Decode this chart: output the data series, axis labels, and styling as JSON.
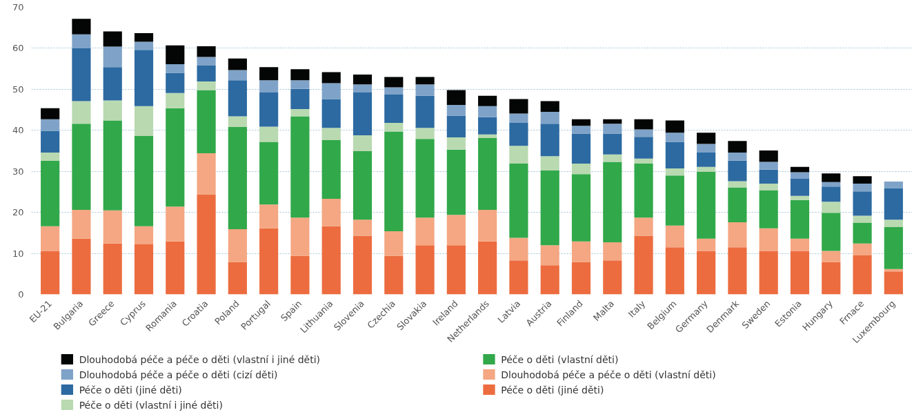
{
  "chart_data": {
    "type": "bar",
    "stacked": true,
    "categories": [
      "EU-21",
      "Bulgaria",
      "Greece",
      "Cyprus",
      "Romania",
      "Croatia",
      "Poland",
      "Portugal",
      "Spain",
      "Lithuania",
      "Slovenia",
      "Czechia",
      "Slovakia",
      "Ireland",
      "Netherlands",
      "Latvia",
      "Austria",
      "Finland",
      "Malta",
      "Italy",
      "Belgium",
      "Germany",
      "Denmark",
      "Sweden",
      "Estonia",
      "Hungary",
      "Frnace",
      "Luxembourg"
    ],
    "series": [
      {
        "name": "Péče o děti (jiné děti)",
        "color": "#ec6c3f",
        "values": [
          10.6,
          13.6,
          12.4,
          12.2,
          12.9,
          24.4,
          7.9,
          16.1,
          9.4,
          16.6,
          14.3,
          9.4,
          12.0,
          12.0,
          12.9,
          8.3,
          7.1,
          7.9,
          8.3,
          14.3,
          11.5,
          10.6,
          11.5,
          10.6,
          10.6,
          7.9,
          9.5,
          5.6
        ]
      },
      {
        "name": "Dlouhodobá péče a péče o děti (vlastní děti)",
        "color": "#f4a782",
        "values": [
          6.0,
          7.0,
          8.1,
          4.4,
          8.5,
          10.0,
          8.0,
          5.8,
          9.3,
          6.7,
          3.9,
          6.0,
          6.7,
          7.4,
          7.7,
          5.5,
          4.9,
          5.0,
          4.4,
          4.4,
          5.3,
          3.0,
          6.1,
          5.5,
          3.0,
          2.7,
          2.9,
          0.6
        ]
      },
      {
        "name": "Péče o děti (vlastní děti)",
        "color": "#31a84a",
        "values": [
          16.0,
          21.0,
          21.9,
          22.0,
          24.0,
          15.4,
          24.9,
          15.3,
          24.7,
          14.3,
          16.7,
          24.3,
          19.2,
          15.9,
          17.5,
          18.1,
          18.2,
          16.4,
          19.6,
          13.2,
          12.2,
          16.3,
          8.5,
          9.3,
          9.4,
          9.3,
          5.1,
          10.2
        ]
      },
      {
        "name": "Péče o děti (vlastní i jiné děti)",
        "color": "#b9d9b1",
        "values": [
          2.0,
          5.5,
          4.9,
          7.3,
          3.7,
          2.1,
          2.6,
          3.7,
          1.8,
          3.0,
          3.9,
          2.1,
          2.7,
          3.0,
          0.9,
          4.3,
          3.5,
          2.6,
          1.8,
          1.2,
          1.7,
          1.2,
          1.5,
          1.6,
          1.0,
          2.7,
          1.7,
          1.8
        ]
      },
      {
        "name": "Péče o děti (jiné děti)",
        "color": "#2c6aa1",
        "values": [
          5.3,
          12.9,
          8.1,
          13.7,
          4.9,
          3.9,
          8.8,
          8.3,
          4.9,
          7.0,
          10.4,
          6.9,
          7.8,
          5.3,
          4.2,
          5.6,
          7.9,
          7.3,
          5.1,
          5.3,
          6.5,
          3.5,
          5.0,
          3.4,
          4.2,
          3.7,
          5.9,
          7.7
        ]
      },
      {
        "name": "Dlouhodobá péče a péče o děti (cizí děti)",
        "color": "#7fa3c8",
        "values": [
          2.8,
          3.4,
          5.0,
          2.0,
          2.1,
          2.1,
          2.5,
          3.0,
          2.1,
          3.9,
          2.0,
          1.8,
          2.8,
          2.6,
          2.7,
          2.3,
          2.9,
          1.9,
          2.4,
          1.8,
          2.2,
          2.1,
          2.0,
          1.9,
          1.6,
          1.1,
          1.9,
          1.6
        ]
      },
      {
        "name": "Dlouhodobá péče a péče o děti (vlastní i jiné děti)",
        "color": "#040606",
        "values": [
          2.7,
          3.8,
          3.7,
          2.1,
          4.6,
          2.6,
          2.8,
          3.2,
          2.7,
          2.7,
          2.4,
          2.5,
          1.8,
          3.6,
          2.5,
          3.5,
          2.6,
          1.6,
          1.1,
          2.5,
          3.0,
          2.7,
          2.8,
          2.8,
          1.3,
          2.1,
          1.8,
          null
        ]
      }
    ],
    "ylim": [
      0,
      70
    ],
    "yticks": [
      0,
      10,
      20,
      30,
      40,
      50,
      60,
      70
    ],
    "grid": "y",
    "legend": "bottom"
  }
}
